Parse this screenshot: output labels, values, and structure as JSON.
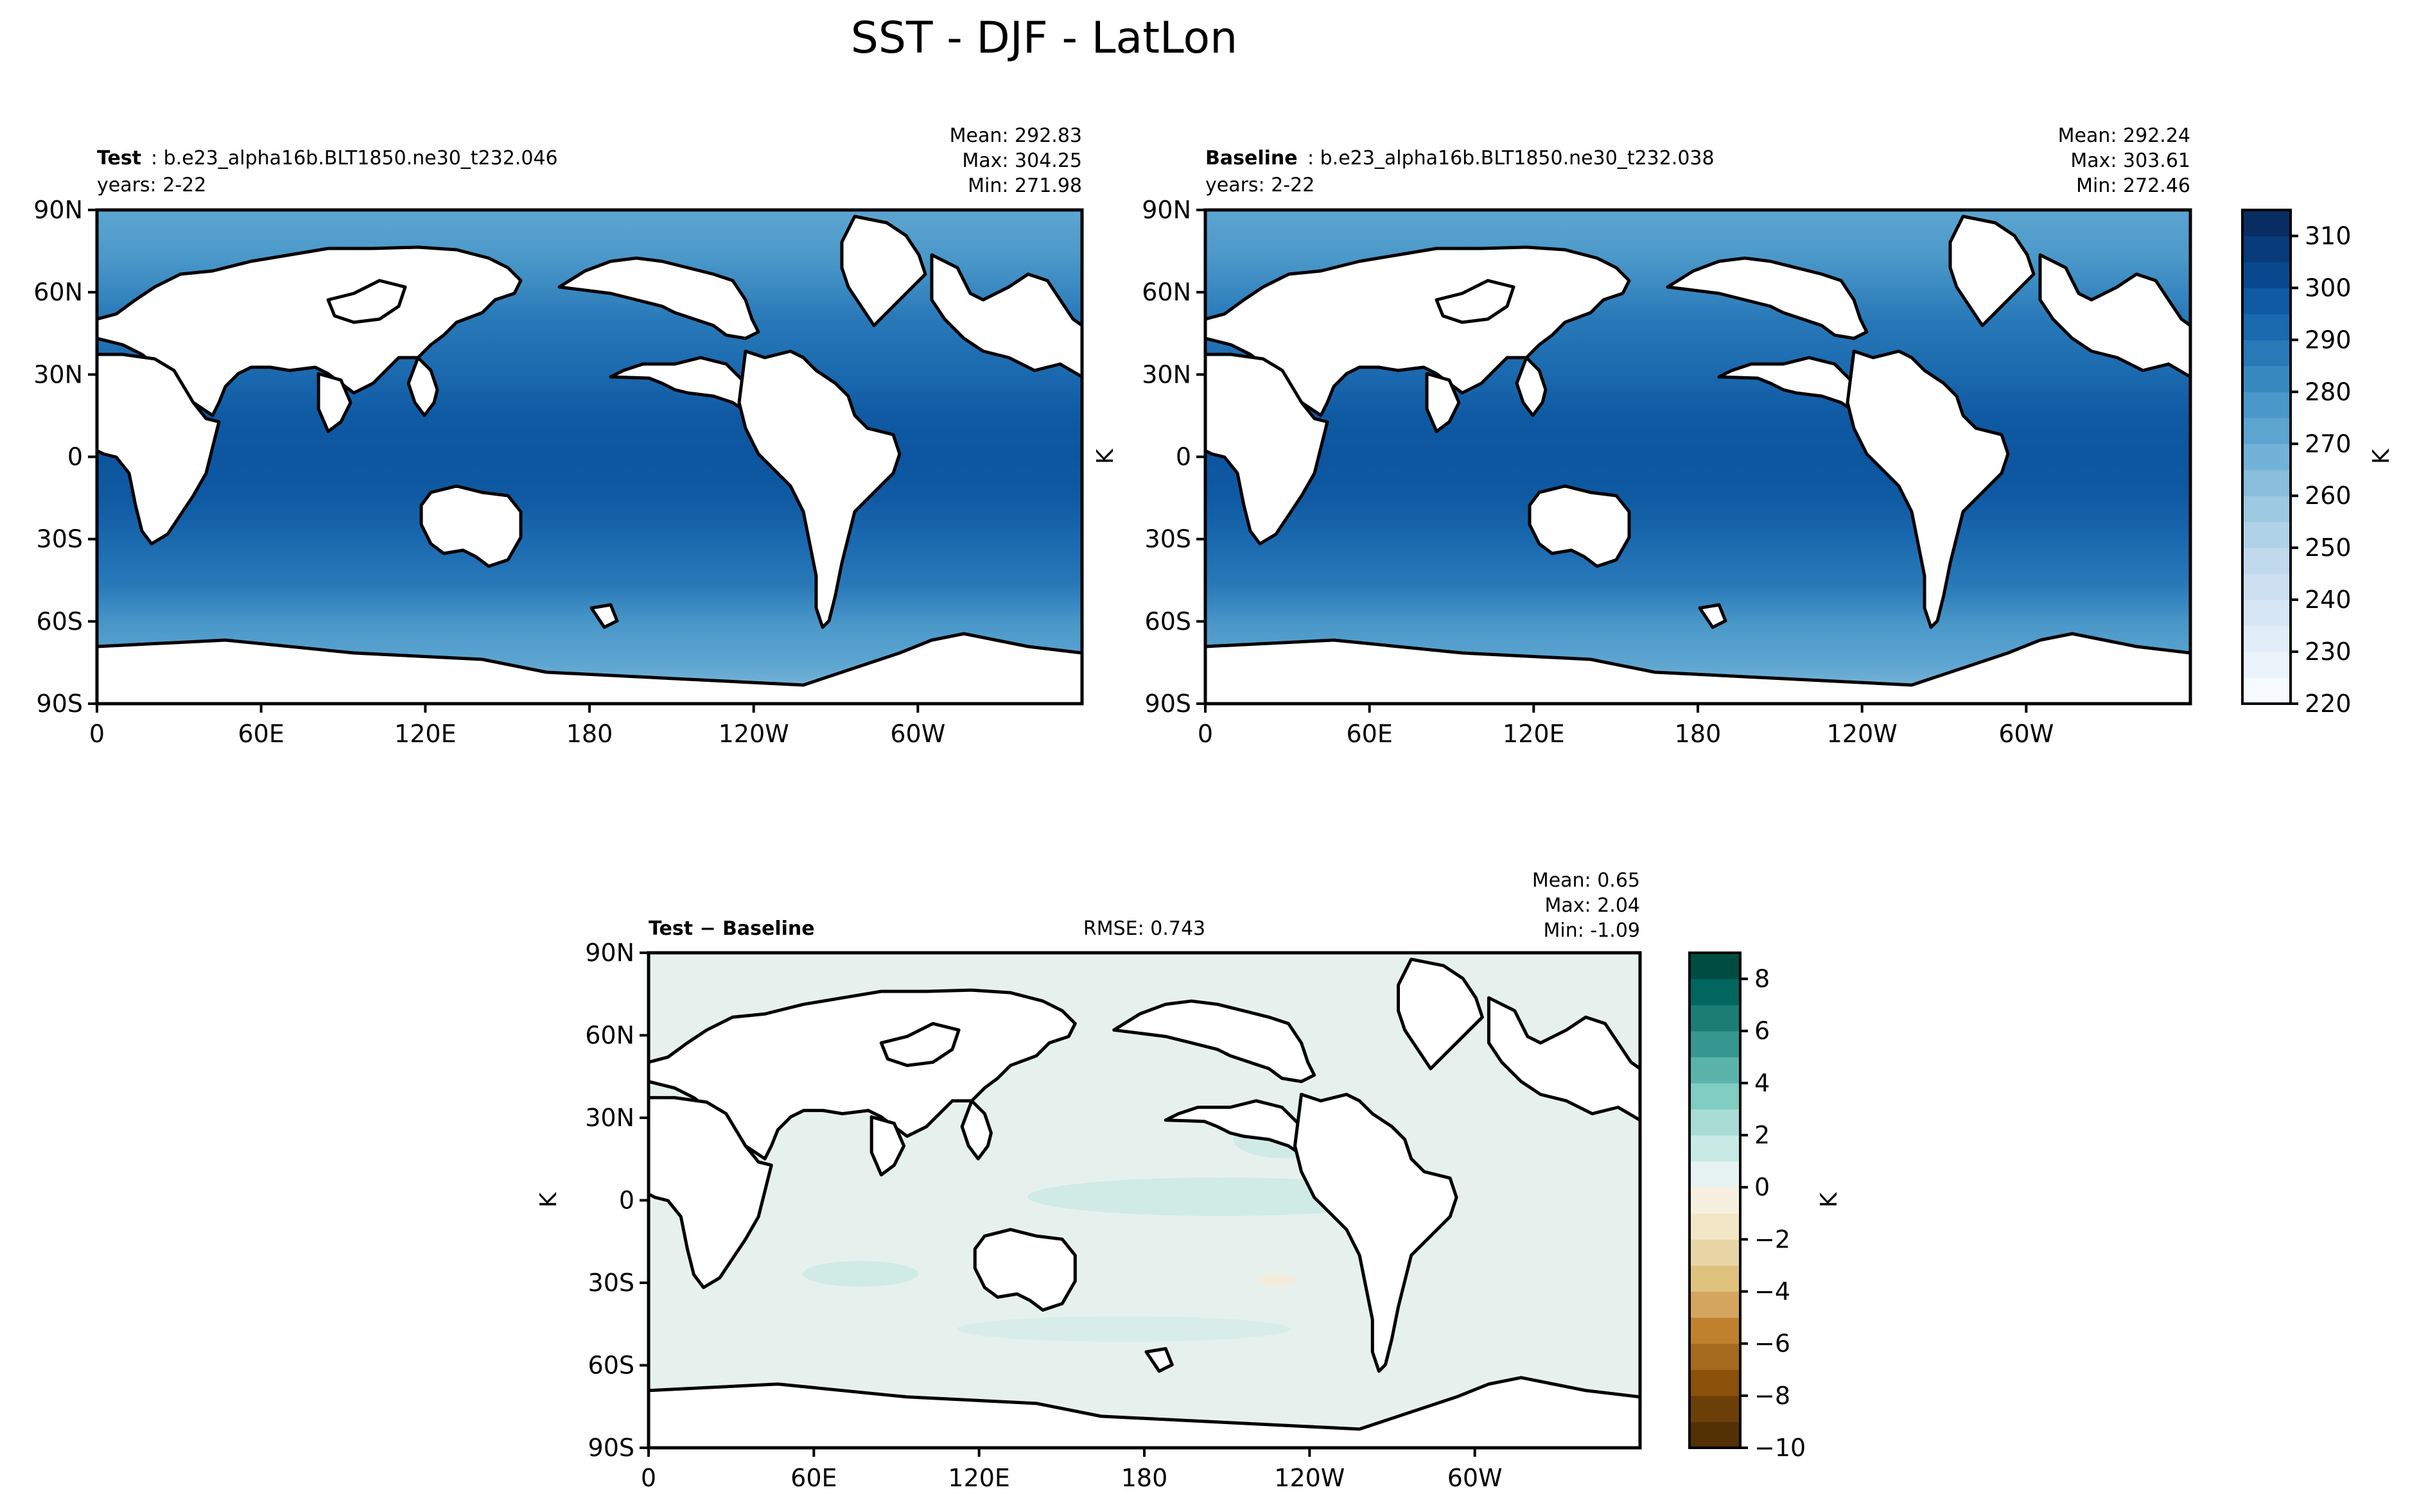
{
  "figure": {
    "title": "SST - DJF - LatLon"
  },
  "chart_data": [
    {
      "type": "heatmap",
      "panel": "test",
      "label_bold": "Test",
      "label_rest": ": b.e23_alpha16b.BLT1850.ne30_t232.046",
      "years": "years: 2-22",
      "stats": [
        "Mean: 292.83",
        "Max: 304.25",
        "Min: 271.98"
      ],
      "ylabel": "",
      "x_ticks": [
        "0",
        "60E",
        "120E",
        "180",
        "120W",
        "60W"
      ],
      "y_ticks": [
        "90N",
        "60N",
        "30N",
        "0",
        "30S",
        "60S",
        "90S"
      ],
      "xlim": [
        0,
        360
      ],
      "ylim": [
        -90,
        90
      ],
      "value_range": [
        220,
        315
      ]
    },
    {
      "type": "heatmap",
      "panel": "baseline",
      "label_bold": "Baseline",
      "label_rest": ": b.e23_alpha16b.BLT1850.ne30_t232.038",
      "years": "years: 2-22",
      "stats": [
        "Mean: 292.24",
        "Max: 303.61",
        "Min: 272.46"
      ],
      "ylabel": "K",
      "x_ticks": [
        "0",
        "60E",
        "120E",
        "180",
        "120W",
        "60W"
      ],
      "y_ticks": [
        "90N",
        "60N",
        "30N",
        "0",
        "30S",
        "60S",
        "90S"
      ],
      "xlim": [
        0,
        360
      ],
      "ylim": [
        -90,
        90
      ],
      "value_range": [
        220,
        315
      ]
    },
    {
      "type": "heatmap",
      "panel": "difference",
      "label_bold": "Test − Baseline",
      "rmse": "RMSE: 0.743",
      "stats": [
        "Mean:  0.65",
        "Max:  2.04",
        "Min: -1.09"
      ],
      "ylabel": "K",
      "x_ticks": [
        "0",
        "60E",
        "120E",
        "180",
        "120W",
        "60W"
      ],
      "y_ticks": [
        "90N",
        "60N",
        "30N",
        "0",
        "30S",
        "60S",
        "90S"
      ],
      "xlim": [
        0,
        360
      ],
      "ylim": [
        -90,
        90
      ],
      "value_range": [
        -10,
        9
      ]
    }
  ],
  "colorbars": [
    {
      "name": "sst",
      "label": "K",
      "range": [
        220,
        315
      ],
      "levels": [
        220,
        225,
        230,
        235,
        240,
        245,
        250,
        255,
        260,
        265,
        270,
        275,
        280,
        285,
        290,
        295,
        300,
        305,
        310,
        315
      ],
      "ticks": [
        "220",
        "230",
        "240",
        "250",
        "260",
        "270",
        "280",
        "290",
        "300",
        "310"
      ],
      "tick_values": [
        220,
        230,
        240,
        250,
        260,
        270,
        280,
        290,
        300,
        310
      ],
      "colors": [
        "#f7fbff",
        "#ebf3fb",
        "#e1edf8",
        "#d6e6f4",
        "#cde0f1",
        "#c1d9ed",
        "#b0d2e8",
        "#9dc9e1",
        "#88bedc",
        "#72b2d8",
        "#5da5d1",
        "#4a98c9",
        "#3989c1",
        "#2979b9",
        "#1b69af",
        "#0f5aa3",
        "#08498e",
        "#083b7a",
        "#082d63"
      ]
    },
    {
      "name": "diff",
      "label": "K",
      "range": [
        -10,
        9
      ],
      "levels": [
        -10,
        -9,
        -8,
        -7,
        -6,
        -5,
        -4,
        -3,
        -2,
        -1,
        0,
        1,
        2,
        3,
        4,
        5,
        6,
        7,
        8,
        9
      ],
      "ticks": [
        "−10",
        "−8",
        "−6",
        "−4",
        "−2",
        "0",
        "2",
        "4",
        "6",
        "8"
      ],
      "tick_values": [
        -10,
        -8,
        -6,
        -4,
        -2,
        0,
        2,
        4,
        6,
        8
      ],
      "colors": [
        "#543005",
        "#6d3f08",
        "#8c510a",
        "#a66a1e",
        "#bf812d",
        "#d3a55e",
        "#dfc27d",
        "#ead5a6",
        "#f3e6c7",
        "#f7f0e0",
        "#e6f3f1",
        "#c7eae5",
        "#a8ddd5",
        "#80cdc1",
        "#5ab4ab",
        "#35978f",
        "#1b7d74",
        "#01665e",
        "#004c42"
      ]
    }
  ]
}
